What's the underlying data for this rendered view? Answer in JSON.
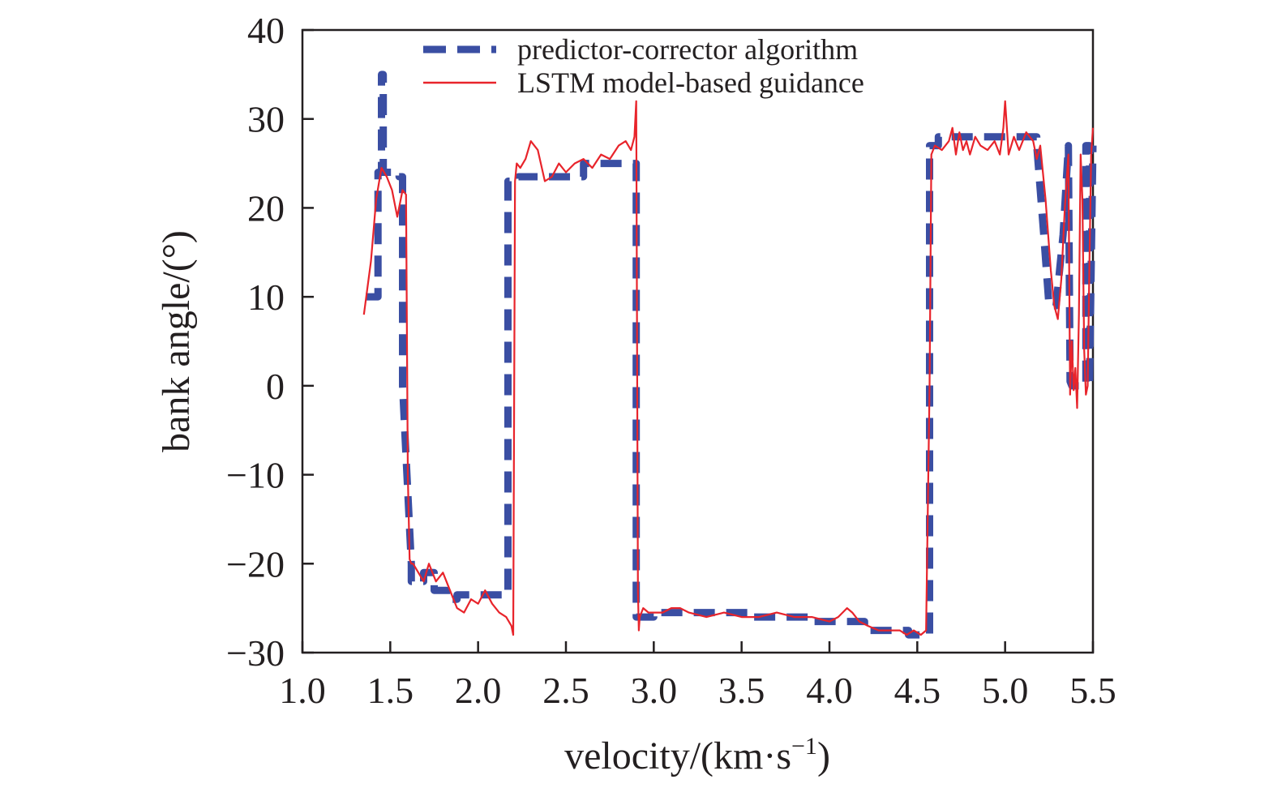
{
  "chart_data": {
    "type": "line",
    "xlabel": "velocity/(km·s",
    "xlabel_sup": "−1",
    "xlabel_close": ")",
    "ylabel": "bank angle/(°)",
    "xlim": [
      1.0,
      5.5
    ],
    "ylim": [
      -30,
      40
    ],
    "x_ticks": [
      1.0,
      1.5,
      2.0,
      2.5,
      3.0,
      3.5,
      4.0,
      4.5,
      5.0,
      5.5
    ],
    "x_tick_labels": [
      "1.0",
      "1.5",
      "2.0",
      "2.5",
      "3.0",
      "3.5",
      "4.0",
      "4.5",
      "5.0",
      "5.5"
    ],
    "y_ticks": [
      -30,
      -20,
      -10,
      0,
      10,
      20,
      30,
      40
    ],
    "y_tick_labels": [
      "−30",
      "−20",
      "−10",
      "0",
      "10",
      "20",
      "30",
      "40"
    ],
    "grid": false,
    "legend_position": "top-center",
    "series": [
      {
        "name": "predictor-corrector algorithm",
        "color": "#3a4ea3",
        "style": "dashed",
        "x": [
          1.36,
          1.43,
          1.43,
          1.45,
          1.45,
          1.46,
          1.46,
          1.55,
          1.55,
          1.57,
          1.57,
          1.62,
          1.62,
          1.69,
          1.69,
          1.75,
          1.75,
          1.82,
          1.82,
          1.88,
          1.88,
          2.17,
          2.17,
          2.23,
          2.23,
          2.6,
          2.6,
          2.9,
          2.9,
          3.0,
          3.0,
          3.55,
          3.55,
          3.9,
          3.9,
          4.2,
          4.2,
          4.45,
          4.45,
          4.57,
          4.57,
          4.62,
          4.62,
          5.18,
          5.18,
          5.22,
          5.25,
          5.29,
          5.33,
          5.36,
          5.37,
          5.38,
          5.42,
          5.46,
          5.46,
          5.48,
          5.48,
          5.5
        ],
        "y": [
          10,
          10,
          24,
          24,
          35,
          35,
          24,
          24,
          23.5,
          23.5,
          0,
          -20,
          -22,
          -22,
          -21,
          -21,
          -23,
          -23,
          -24,
          -24,
          -23.5,
          -23.5,
          23,
          23,
          23.5,
          23.5,
          25,
          25,
          -26,
          -26,
          -25.5,
          -25.5,
          -26,
          -26,
          -26.5,
          -26.5,
          -27.5,
          -27.5,
          -28,
          -28,
          27,
          27,
          28,
          28,
          27,
          17,
          9,
          9,
          17,
          27,
          0.5,
          0,
          0,
          0,
          27,
          27,
          0,
          27
        ]
      },
      {
        "name": "LSTM model-based guidance",
        "color": "#e8242b",
        "style": "solid",
        "x": [
          1.35,
          1.39,
          1.42,
          1.45,
          1.48,
          1.51,
          1.54,
          1.57,
          1.59,
          1.6,
          1.61,
          1.62,
          1.63,
          1.66,
          1.69,
          1.72,
          1.76,
          1.8,
          1.84,
          1.88,
          1.92,
          1.96,
          2.0,
          2.04,
          2.08,
          2.12,
          2.16,
          2.19,
          2.2,
          2.21,
          2.22,
          2.24,
          2.27,
          2.3,
          2.34,
          2.38,
          2.42,
          2.46,
          2.5,
          2.55,
          2.6,
          2.65,
          2.7,
          2.75,
          2.8,
          2.84,
          2.87,
          2.89,
          2.9,
          2.91,
          2.915,
          2.92,
          2.94,
          2.97,
          3.0,
          3.05,
          3.1,
          3.15,
          3.2,
          3.3,
          3.4,
          3.5,
          3.6,
          3.7,
          3.8,
          3.9,
          4.0,
          4.05,
          4.1,
          4.13,
          4.17,
          4.22,
          4.28,
          4.34,
          4.4,
          4.44,
          4.48,
          4.52,
          4.55,
          4.57,
          4.58,
          4.6,
          4.64,
          4.68,
          4.7,
          4.72,
          4.74,
          4.76,
          4.78,
          4.8,
          4.83,
          4.86,
          4.9,
          4.94,
          4.97,
          4.99,
          5.0,
          5.02,
          5.05,
          5.08,
          5.12,
          5.16,
          5.18,
          5.2,
          5.23,
          5.26,
          5.28,
          5.3,
          5.32,
          5.34,
          5.35,
          5.36,
          5.37,
          5.38,
          5.39,
          5.4,
          5.41,
          5.42,
          5.43,
          5.44,
          5.45,
          5.46,
          5.47,
          5.48,
          5.49,
          5.5
        ],
        "y": [
          8,
          14,
          21,
          24.5,
          23.5,
          22,
          19,
          22,
          21.5,
          -10,
          -19.5,
          -20,
          -20,
          -21,
          -22,
          -20,
          -22,
          -21,
          -23,
          -25,
          -25.5,
          -24,
          -24.5,
          -23,
          -24.5,
          -25.5,
          -26,
          -27,
          -28,
          23,
          25,
          24.5,
          25.5,
          27.5,
          26.5,
          23,
          23.5,
          25,
          24,
          25,
          25.5,
          24.5,
          26,
          25.5,
          27,
          27.5,
          26.5,
          28,
          32,
          -23,
          -27.5,
          -26,
          -25,
          -25.5,
          -25.5,
          -25.5,
          -25,
          -25,
          -25.5,
          -26,
          -25.5,
          -26,
          -26,
          -25.5,
          -26,
          -26,
          -26.5,
          -26,
          -25,
          -25.5,
          -26.5,
          -27,
          -27.5,
          -27.5,
          -27.5,
          -28,
          -27.5,
          -28,
          -27.5,
          0,
          26,
          27,
          26.5,
          27.5,
          29,
          26,
          28.5,
          26.5,
          27.5,
          26,
          28,
          27,
          26.5,
          27.5,
          26,
          29,
          32,
          26,
          28,
          26.5,
          28.5,
          27.5,
          25.5,
          27,
          21,
          13,
          9,
          7.5,
          12,
          20,
          23,
          26,
          -1,
          5,
          -0.5,
          2,
          -2.5,
          8,
          26,
          21,
          4,
          -1,
          0,
          14,
          26,
          29
        ]
      }
    ]
  }
}
